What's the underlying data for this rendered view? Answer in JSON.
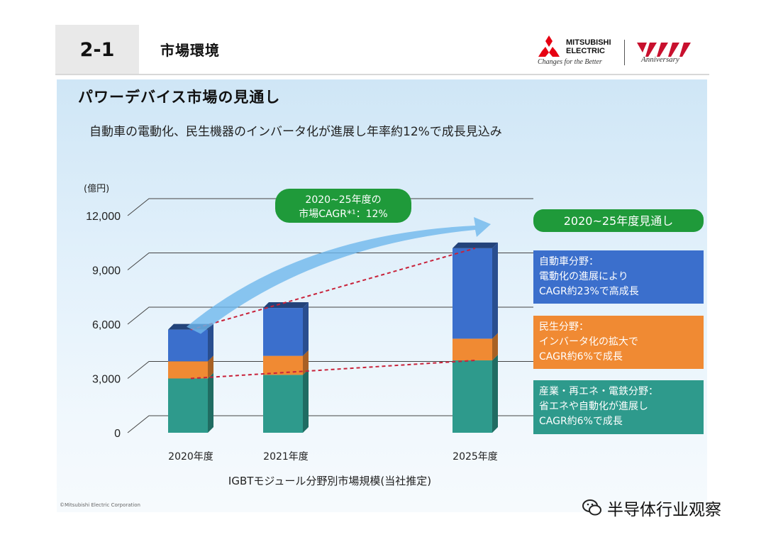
{
  "header": {
    "section_number": "2-1",
    "section_title": "市場環境",
    "logo_line1": "MITSUBISHI",
    "logo_line2": "ELECTRIC",
    "logo_tagline": "Changes for the Better",
    "anniversary_text": "Anniversary"
  },
  "slide": {
    "title": "パワーデバイス市場の見通し",
    "subtitle": "自動車の電動化、民生機器のインバータ化が進展し年率約12%で成長見込み",
    "copyright": "©Mitsubishi Electric Corporation"
  },
  "watermark": "半导体行业观察",
  "colors": {
    "automotive": "#3b6fcc",
    "consumer": "#f08a33",
    "industrial": "#2e9a8c",
    "trend_line": "#c8223a",
    "green_label": "#1f9a3a",
    "arrow": "#6fb8ec"
  },
  "chart_data": {
    "type": "bar",
    "stacked": true,
    "unit_label": "(億円)",
    "xlabel": "IGBTモジュール分野別市場規模(当社推定)",
    "categories": [
      "2020年度",
      "2021年度",
      "2025年度"
    ],
    "ylim": [
      0,
      12000
    ],
    "yticks": [
      "0",
      "3,000",
      "6,000",
      "9,000",
      "12,000"
    ],
    "series": [
      {
        "name": "産業・再エネ・電鉄分野",
        "values": [
          3000,
          3200,
          4000
        ]
      },
      {
        "name": "民生分野",
        "values": [
          950,
          1050,
          1200
        ]
      },
      {
        "name": "自動車分野",
        "values": [
          1750,
          2650,
          5000
        ]
      }
    ],
    "cagr_label_line1": "2020~25年度の",
    "cagr_label_line2": "市場CAGR*¹：12%",
    "outlook_label": "2020~25年度見通し",
    "callouts": [
      {
        "series": "自動車分野",
        "lines": [
          "自動車分野：",
          "電動化の進展により",
          "CAGR約23%で高成長"
        ]
      },
      {
        "series": "民生分野",
        "lines": [
          "民生分野：",
          "インバータ化の拡大で",
          "CAGR約6%で成長"
        ]
      },
      {
        "series": "産業・再エネ・電鉄分野",
        "lines": [
          "産業・再エネ・電鉄分野：",
          "省エネや自動化が進展し",
          "CAGR約6%で成長"
        ]
      }
    ]
  }
}
